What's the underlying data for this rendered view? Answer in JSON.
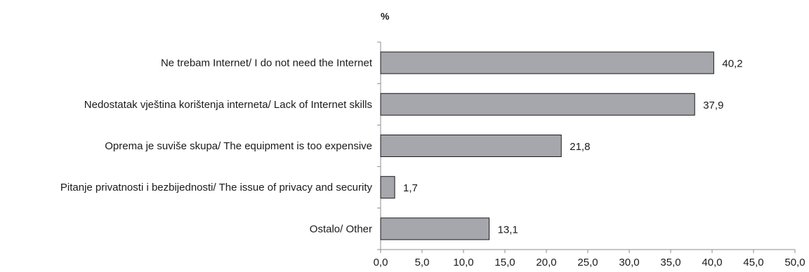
{
  "chart_data": {
    "type": "bar",
    "orientation": "horizontal",
    "unit_label": "%",
    "categories": [
      "Ne trebam Internet/ I do not need the Internet",
      "Nedostatak vještina korištenja interneta/ Lack of Internet skills",
      "Oprema je suviše skupa/ The equipment is too expensive",
      "Pitanje privatnosti i bezbijednosti/ The issue of privacy and security",
      "Ostalo/ Other"
    ],
    "values": [
      40.2,
      37.9,
      21.8,
      1.7,
      13.1
    ],
    "value_labels": [
      "40,2",
      "37,9",
      "21,8",
      "1,7",
      "13,1"
    ],
    "xlim": [
      0,
      50
    ],
    "xticks": [
      "0,0",
      "5,0",
      "10,0",
      "15,0",
      "20,0",
      "25,0",
      "30,0",
      "35,0",
      "40,0",
      "45,0",
      "50,0"
    ],
    "grid": false,
    "legend": "none",
    "bar_color": "#a6a6ad",
    "bar_stroke": "#1a1a1a"
  }
}
